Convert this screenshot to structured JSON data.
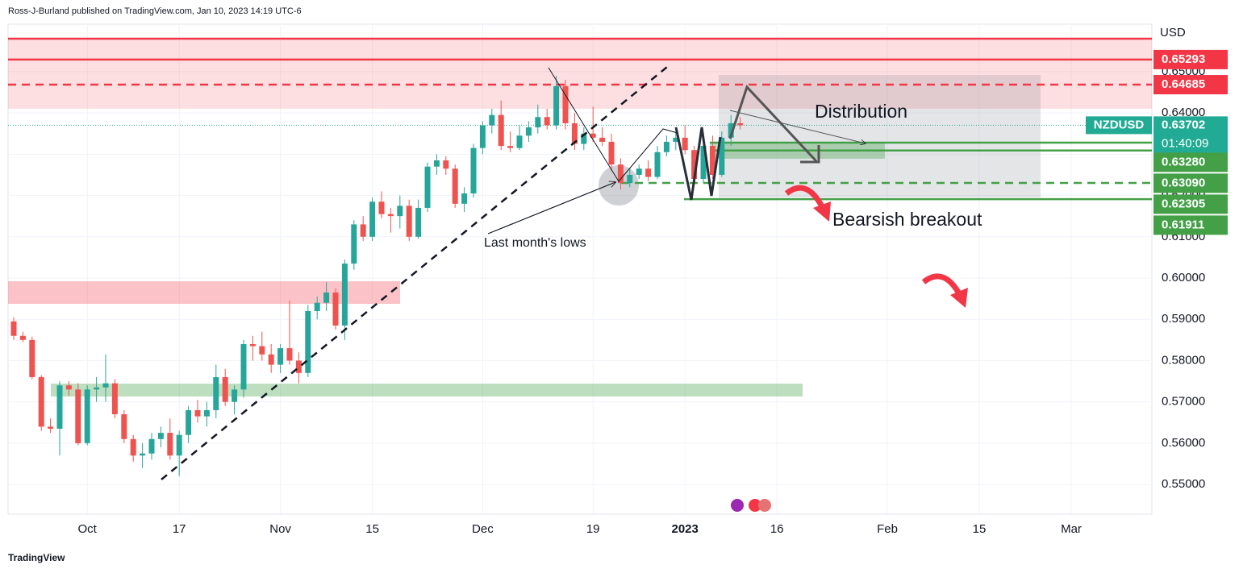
{
  "header": {
    "text": "Ross-J-Burland published on TradingView.com, Jan 10, 2023 14:19 UTC-6"
  },
  "footer": {
    "brand": "TradingView"
  },
  "chart_data": {
    "type": "candlestick",
    "currency": "USD",
    "categories": [
      null,
      null,
      null,
      null,
      null,
      null,
      null,
      null,
      "Oct",
      null,
      null,
      null,
      null,
      null,
      null,
      null,
      null,
      null,
      "17",
      null,
      null,
      null,
      null,
      null,
      null,
      null,
      null,
      null,
      null,
      "Nov",
      null,
      null,
      null,
      null,
      null,
      null,
      null,
      null,
      null,
      "15",
      null,
      null,
      null,
      null,
      null,
      null,
      null,
      null,
      null,
      null,
      null,
      "Dec",
      null,
      null,
      null,
      null,
      null,
      null,
      null,
      null,
      null,
      null,
      null,
      "19",
      null,
      null,
      null,
      null,
      null,
      null,
      null,
      null,
      null,
      "2023",
      null,
      null,
      null,
      null,
      null,
      null,
      null,
      null,
      null,
      "16",
      null,
      null,
      null,
      null,
      null,
      null,
      null,
      null,
      null,
      null,
      null,
      "Feb",
      null,
      null,
      null,
      null,
      null,
      null,
      null,
      null,
      null,
      "15",
      null,
      null,
      null,
      null,
      null,
      null,
      null,
      null,
      null,
      "Mar",
      null,
      null,
      null,
      null,
      null,
      null,
      null,
      null,
      null
    ],
    "open": [
      0.5895,
      0.586,
      0.585,
      0.576,
      0.564,
      0.5635,
      0.574,
      0.573,
      0.56,
      0.573,
      0.5735,
      0.5745,
      0.567,
      0.561,
      0.557,
      0.5575,
      0.561,
      0.5625,
      0.557,
      0.562,
      0.568,
      0.5665,
      0.568,
      0.576,
      0.57,
      0.573,
      0.584,
      0.5835,
      0.5815,
      0.579,
      0.583,
      0.58,
      0.577,
      0.592,
      0.594,
      0.5965,
      0.5885,
      0.6035,
      0.613,
      0.61,
      0.6185,
      0.6155,
      0.615,
      0.6175,
      0.61,
      0.617,
      0.627,
      0.6285,
      0.6265,
      0.618,
      0.6205,
      0.6315,
      0.637,
      0.6395,
      0.632,
      0.6315,
      0.6345,
      0.6365,
      0.639,
      0.637,
      0.6465,
      0.6375,
      0.6325,
      0.635,
      0.634,
      0.633,
      0.6275,
      0.623,
      0.625,
      0.6265,
      0.6245,
      0.6305,
      0.633,
      0.634,
      0.631,
      0.624,
      0.632,
      0.625,
      0.634,
      0.6375,
      null,
      null,
      null,
      null,
      null,
      null,
      null,
      null,
      null,
      null,
      null,
      null,
      null,
      null,
      null,
      null,
      null,
      null,
      null,
      null,
      null,
      null,
      null,
      null,
      null,
      null,
      null,
      null,
      null,
      null,
      null,
      null,
      null,
      null,
      null,
      null,
      null,
      null,
      null,
      null,
      null,
      null,
      null,
      null,
      null
    ],
    "high": [
      0.5905,
      0.587,
      0.5858,
      0.5765,
      0.566,
      0.575,
      0.575,
      0.5745,
      0.574,
      0.576,
      0.5815,
      0.5755,
      0.568,
      0.562,
      0.56,
      0.5625,
      0.564,
      0.566,
      0.563,
      0.569,
      0.5705,
      0.57,
      0.579,
      0.578,
      0.574,
      0.585,
      0.586,
      0.587,
      0.584,
      0.584,
      0.5945,
      0.582,
      0.5935,
      0.5955,
      0.599,
      0.5975,
      0.6045,
      0.614,
      0.615,
      0.6195,
      0.621,
      0.617,
      0.62,
      0.619,
      0.619,
      0.628,
      0.63,
      0.6295,
      0.6275,
      0.622,
      0.6325,
      0.638,
      0.641,
      0.643,
      0.6355,
      0.637,
      0.638,
      0.642,
      0.641,
      0.649,
      0.648,
      0.64,
      0.6365,
      0.6415,
      0.6365,
      0.635,
      0.629,
      0.6265,
      0.6275,
      0.6285,
      0.632,
      0.6345,
      0.6355,
      0.637,
      0.632,
      0.633,
      0.6345,
      0.6355,
      0.6395,
      0.639,
      null,
      null,
      null,
      null,
      null,
      null,
      null,
      null,
      null,
      null,
      null,
      null,
      null,
      null,
      null,
      null,
      null,
      null,
      null,
      null,
      null,
      null,
      null,
      null,
      null,
      null,
      null,
      null,
      null,
      null,
      null,
      null,
      null,
      null,
      null,
      null,
      null,
      null,
      null,
      null,
      null,
      null,
      null,
      null,
      null
    ],
    "low": [
      0.585,
      0.5845,
      0.5755,
      0.563,
      0.5625,
      0.557,
      0.5715,
      0.5595,
      0.5595,
      0.57,
      0.57,
      0.566,
      0.56,
      0.5555,
      0.554,
      0.556,
      0.559,
      0.556,
      0.552,
      0.56,
      0.565,
      0.564,
      0.566,
      0.569,
      0.567,
      0.571,
      0.58,
      0.58,
      0.577,
      0.577,
      0.579,
      0.5745,
      0.576,
      0.59,
      0.592,
      0.5875,
      0.585,
      0.602,
      0.609,
      0.609,
      0.6145,
      0.611,
      0.612,
      0.609,
      0.6095,
      0.616,
      0.625,
      0.625,
      0.617,
      0.616,
      0.6195,
      0.63,
      0.635,
      0.631,
      0.6305,
      0.631,
      0.633,
      0.635,
      0.636,
      0.636,
      0.636,
      0.631,
      0.631,
      0.633,
      0.632,
      0.626,
      0.6215,
      0.622,
      0.624,
      0.6235,
      0.624,
      0.6295,
      0.631,
      0.63,
      0.6225,
      0.623,
      0.624,
      0.6245,
      0.632,
      0.636,
      null,
      null,
      null,
      null,
      null,
      null,
      null,
      null,
      null,
      null,
      null,
      null,
      null,
      null,
      null,
      null,
      null,
      null,
      null,
      null,
      null,
      null,
      null,
      null,
      null,
      null,
      null,
      null,
      null,
      null,
      null,
      null,
      null,
      null,
      null,
      null,
      null,
      null,
      null,
      null,
      null,
      null,
      null,
      null,
      null
    ],
    "close": [
      0.586,
      0.585,
      0.576,
      0.564,
      0.5635,
      0.574,
      0.573,
      0.56,
      0.573,
      0.5735,
      0.5745,
      0.567,
      0.561,
      0.557,
      0.5575,
      0.561,
      0.5625,
      0.557,
      0.562,
      0.568,
      0.5665,
      0.568,
      0.576,
      0.57,
      0.573,
      0.584,
      0.5835,
      0.5815,
      0.579,
      0.583,
      0.58,
      0.577,
      0.592,
      0.594,
      0.5965,
      0.5885,
      0.6035,
      0.613,
      0.61,
      0.6185,
      0.6155,
      0.615,
      0.6175,
      0.61,
      0.617,
      0.627,
      0.6285,
      0.6265,
      0.618,
      0.6205,
      0.6315,
      0.637,
      0.6395,
      0.632,
      0.6315,
      0.6345,
      0.6365,
      0.639,
      0.637,
      0.6465,
      0.6375,
      0.6325,
      0.635,
      0.634,
      0.633,
      0.6275,
      0.623,
      0.625,
      0.6265,
      0.6245,
      0.6305,
      0.633,
      0.634,
      0.631,
      0.624,
      0.632,
      0.625,
      0.634,
      0.6375,
      0.63702,
      null,
      null,
      null,
      null,
      null,
      null,
      null,
      null,
      null,
      null,
      null,
      null,
      null,
      null,
      null,
      null,
      null,
      null,
      null,
      null,
      null,
      null,
      null,
      null,
      null,
      null,
      null,
      null,
      null,
      null,
      null,
      null,
      null,
      null,
      null,
      null,
      null,
      null,
      null,
      null,
      null,
      null,
      null,
      null,
      null
    ],
    "up_color": "#26a69a",
    "down_color": "#ef5350",
    "ylim": [
      0.5428,
      0.6615
    ],
    "yticks": [
      {
        "value": 0.55,
        "label": "0.55000"
      },
      {
        "value": 0.56,
        "label": "0.56000"
      },
      {
        "value": 0.57,
        "label": "0.57000"
      },
      {
        "value": 0.58,
        "label": "0.58000"
      },
      {
        "value": 0.59,
        "label": "0.59000"
      },
      {
        "value": 0.6,
        "label": "0.60000"
      },
      {
        "value": 0.61,
        "label": "0.61000"
      },
      {
        "value": 0.62,
        "label": "0.62000"
      },
      {
        "value": 0.63,
        "label": "0.63000"
      },
      {
        "value": 0.64,
        "label": "0.64000"
      },
      {
        "value": 0.65,
        "label": "0.65000"
      }
    ],
    "grid": true,
    "price_lines": [
      {
        "value": 0.65293,
        "label": "0.65293",
        "color": "#f23645",
        "dashed": false
      },
      {
        "value": 0.64685,
        "label": "0.64685",
        "color": "#f23645",
        "dashed": true
      },
      {
        "value": 0.6328,
        "label": "0.63280",
        "color": "#43a047",
        "dashed": false
      },
      {
        "value": 0.6309,
        "label": "0.63090",
        "color": "#43a047",
        "dashed": false
      },
      {
        "value": 0.62305,
        "label": "0.62305",
        "color": "#43a047",
        "dashed": true
      },
      {
        "value": 0.61911,
        "label": "0.61911",
        "color": "#43a047",
        "dashed": false
      }
    ],
    "last_price": {
      "symbol": "NZDUSD",
      "value": 0.63702,
      "label": "0.63702",
      "countdown": "01:40:09",
      "color": "#22ab94"
    },
    "annotations": {
      "distribution": "Distribution",
      "breakout": "Bearsish breakout",
      "lows": "Last month's lows"
    }
  }
}
